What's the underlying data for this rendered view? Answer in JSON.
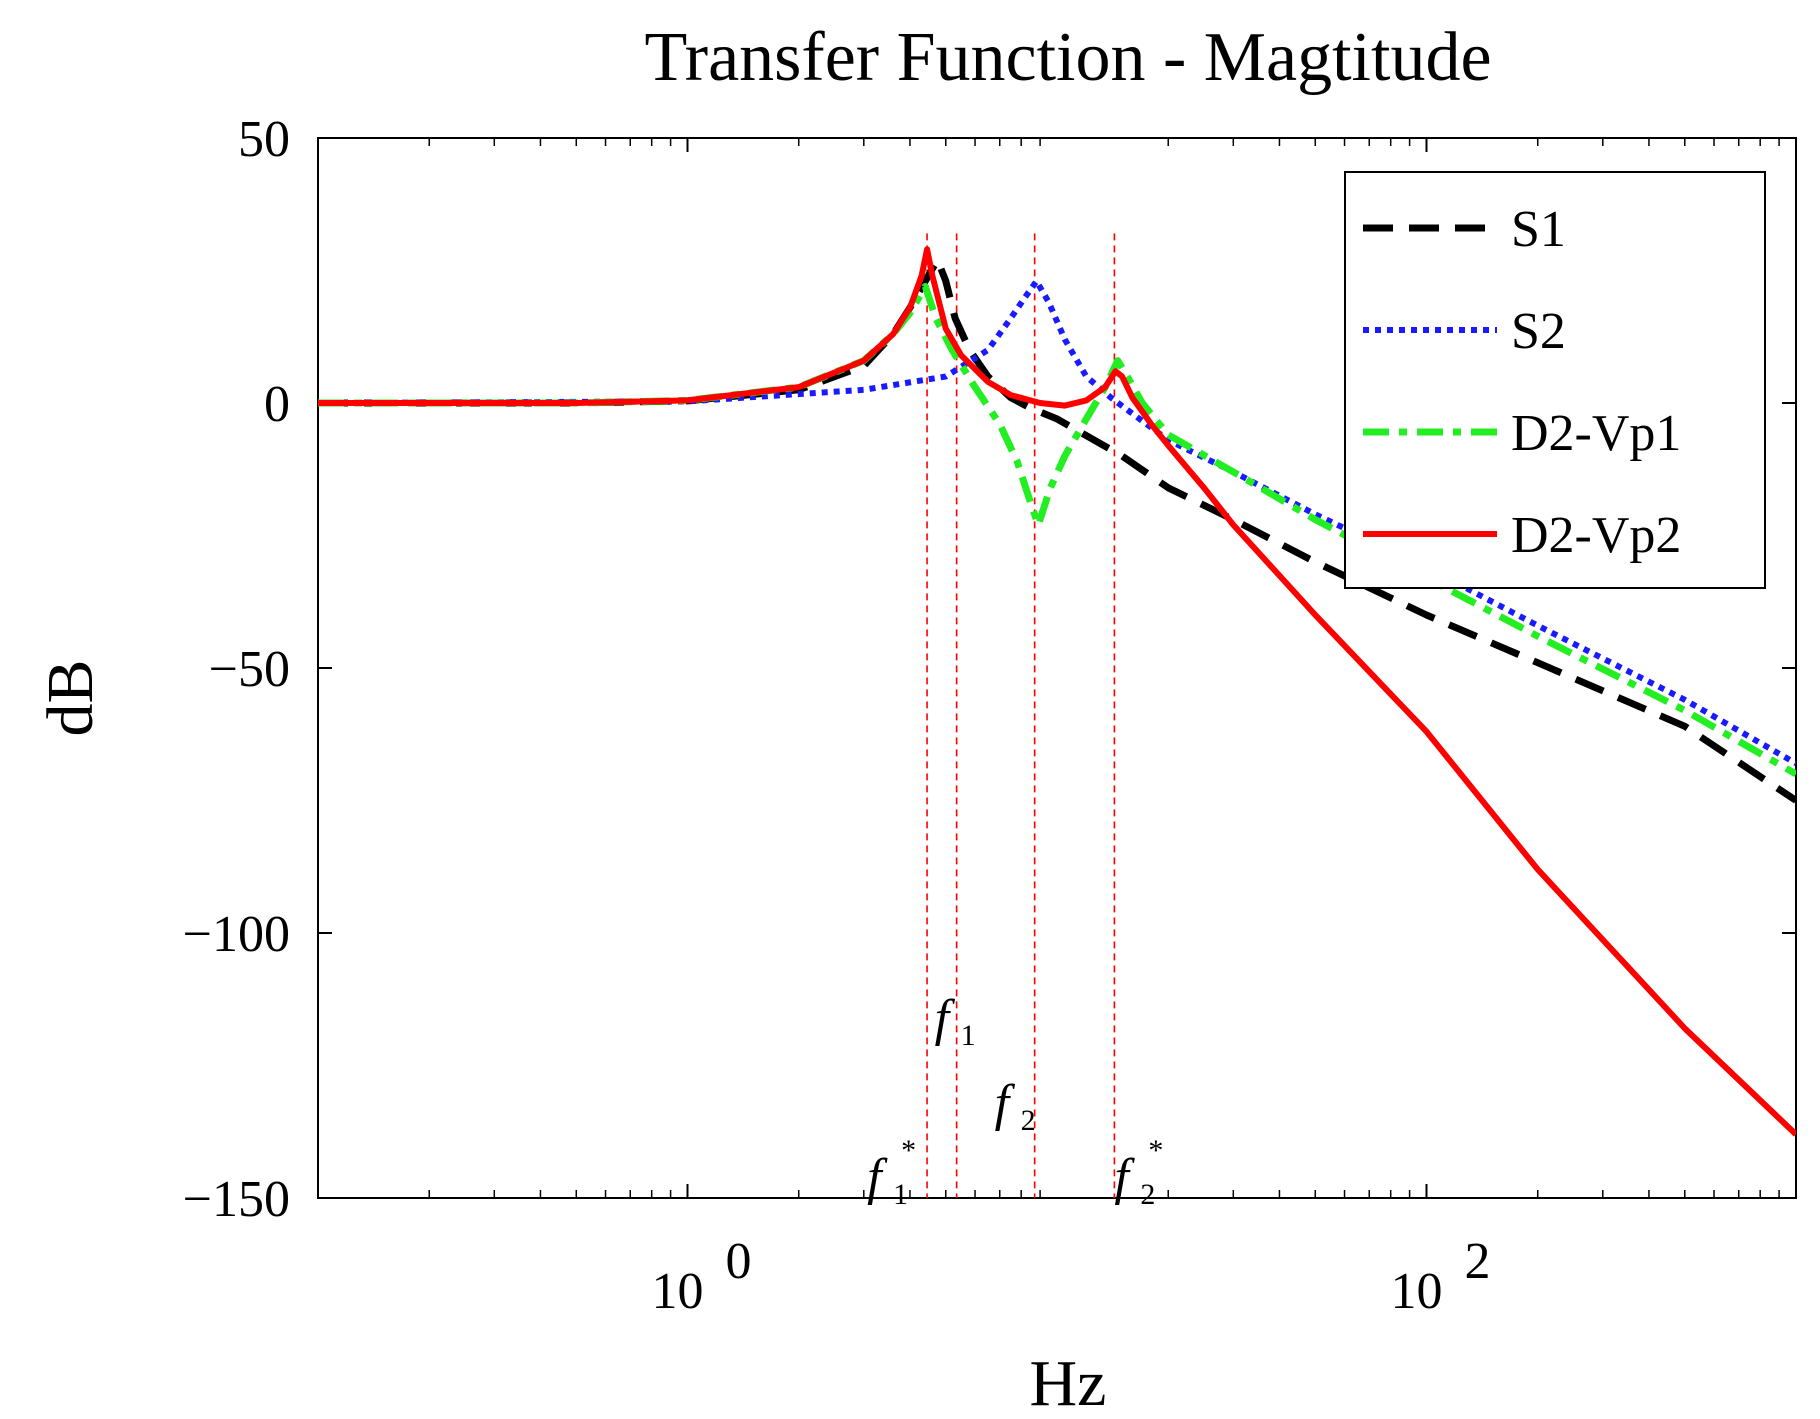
{
  "chart_data": {
    "type": "line",
    "title": "Transfer Function - Magtitude",
    "xlabel": "Hz",
    "ylabel": "dB",
    "xscale": "log",
    "xlim": [
      0.1,
      1000
    ],
    "ylim": [
      -150,
      50
    ],
    "yticks": [
      {
        "value": 50,
        "label": "50"
      },
      {
        "value": 0,
        "label": "0"
      },
      {
        "value": -50,
        "label": "−50"
      },
      {
        "value": -100,
        "label": "−100"
      },
      {
        "value": -150,
        "label": "−150"
      }
    ],
    "xticks": [
      {
        "value": 1,
        "base": "10",
        "exp": "0"
      },
      {
        "value": 100,
        "base": "10",
        "exp": "2"
      }
    ],
    "grid": false,
    "legend_position": "top-right",
    "series": [
      {
        "name": "S1",
        "color": "#000000",
        "style": "dashed",
        "points": [
          [
            0.1,
            0
          ],
          [
            0.5,
            0
          ],
          [
            1,
            0.4
          ],
          [
            2,
            2.5
          ],
          [
            3,
            7
          ],
          [
            3.6,
            13
          ],
          [
            4,
            18
          ],
          [
            4.4,
            23
          ],
          [
            4.75,
            27
          ],
          [
            5.0,
            23
          ],
          [
            5.3,
            16
          ],
          [
            5.8,
            10
          ],
          [
            6.5,
            5
          ],
          [
            7.5,
            1
          ],
          [
            8.5,
            -1
          ],
          [
            10,
            -3
          ],
          [
            15,
            -10
          ],
          [
            20,
            -16
          ],
          [
            30,
            -22
          ],
          [
            50,
            -30
          ],
          [
            100,
            -40
          ],
          [
            200,
            -49
          ],
          [
            500,
            -61
          ],
          [
            1000,
            -75
          ]
        ]
      },
      {
        "name": "S2",
        "color": "#1a1aff",
        "style": "dotted",
        "points": [
          [
            0.1,
            0
          ],
          [
            1,
            0.3
          ],
          [
            3,
            2.5
          ],
          [
            5,
            5
          ],
          [
            6.5,
            10
          ],
          [
            7.5,
            16
          ],
          [
            8.2,
            20
          ],
          [
            8.8,
            23
          ],
          [
            9.5,
            19
          ],
          [
            10.5,
            12
          ],
          [
            12,
            5
          ],
          [
            14,
            1
          ],
          [
            16,
            -2
          ],
          [
            20,
            -7
          ],
          [
            30,
            -13
          ],
          [
            50,
            -21
          ],
          [
            100,
            -31
          ],
          [
            200,
            -42
          ],
          [
            500,
            -56
          ],
          [
            1000,
            -68
          ]
        ]
      },
      {
        "name": "D2-Vp1",
        "color": "#22ee22",
        "style": "dashdot",
        "points": [
          [
            0.1,
            0
          ],
          [
            0.5,
            0
          ],
          [
            1,
            0.5
          ],
          [
            2,
            3
          ],
          [
            3,
            8
          ],
          [
            3.6,
            13
          ],
          [
            4.0,
            17
          ],
          [
            4.4,
            22
          ],
          [
            4.7,
            16
          ],
          [
            5.2,
            10
          ],
          [
            6,
            3
          ],
          [
            7,
            -4
          ],
          [
            7.8,
            -11
          ],
          [
            8.5,
            -19
          ],
          [
            8.9,
            -23
          ],
          [
            9.6,
            -16
          ],
          [
            10.5,
            -10
          ],
          [
            12,
            -3
          ],
          [
            13.5,
            3
          ],
          [
            14.6,
            8
          ],
          [
            15.5,
            5
          ],
          [
            17,
            0
          ],
          [
            20,
            -6
          ],
          [
            30,
            -13
          ],
          [
            50,
            -22
          ],
          [
            100,
            -33
          ],
          [
            200,
            -44
          ],
          [
            500,
            -58
          ],
          [
            1000,
            -70
          ]
        ]
      },
      {
        "name": "D2-Vp2",
        "color": "#ff0000",
        "style": "solid",
        "points": [
          [
            0.1,
            0
          ],
          [
            0.5,
            0
          ],
          [
            1,
            0.5
          ],
          [
            2,
            3
          ],
          [
            3,
            8
          ],
          [
            3.6,
            13
          ],
          [
            4.0,
            18
          ],
          [
            4.3,
            24
          ],
          [
            4.45,
            29
          ],
          [
            4.6,
            24
          ],
          [
            5.0,
            14
          ],
          [
            5.5,
            9
          ],
          [
            6.5,
            4
          ],
          [
            7.5,
            1.5
          ],
          [
            9,
            0
          ],
          [
            10.5,
            -0.5
          ],
          [
            12,
            0.5
          ],
          [
            13.5,
            3
          ],
          [
            14.4,
            6
          ],
          [
            15,
            5
          ],
          [
            16,
            1
          ],
          [
            18,
            -4
          ],
          [
            20,
            -8
          ],
          [
            25,
            -16
          ],
          [
            30,
            -23
          ],
          [
            50,
            -40
          ],
          [
            100,
            -62
          ],
          [
            200,
            -88
          ],
          [
            500,
            -118
          ],
          [
            1000,
            -138
          ]
        ]
      }
    ],
    "annotations": {
      "line_color": "#ff0000",
      "markers": [
        {
          "id": "f1_star",
          "x": 4.45,
          "main": "f",
          "sub": "1",
          "sup": "*",
          "label_y": -150
        },
        {
          "id": "f1",
          "x": 5.35,
          "main": "f",
          "sub": "1",
          "sup": "",
          "label_y": -120
        },
        {
          "id": "f2",
          "x": 8.7,
          "main": "f",
          "sub": "2",
          "sup": "",
          "label_y": -136
        },
        {
          "id": "f2_star",
          "x": 14.3,
          "main": "f",
          "sub": "2",
          "sup": "*",
          "label_y": -150
        }
      ]
    }
  }
}
